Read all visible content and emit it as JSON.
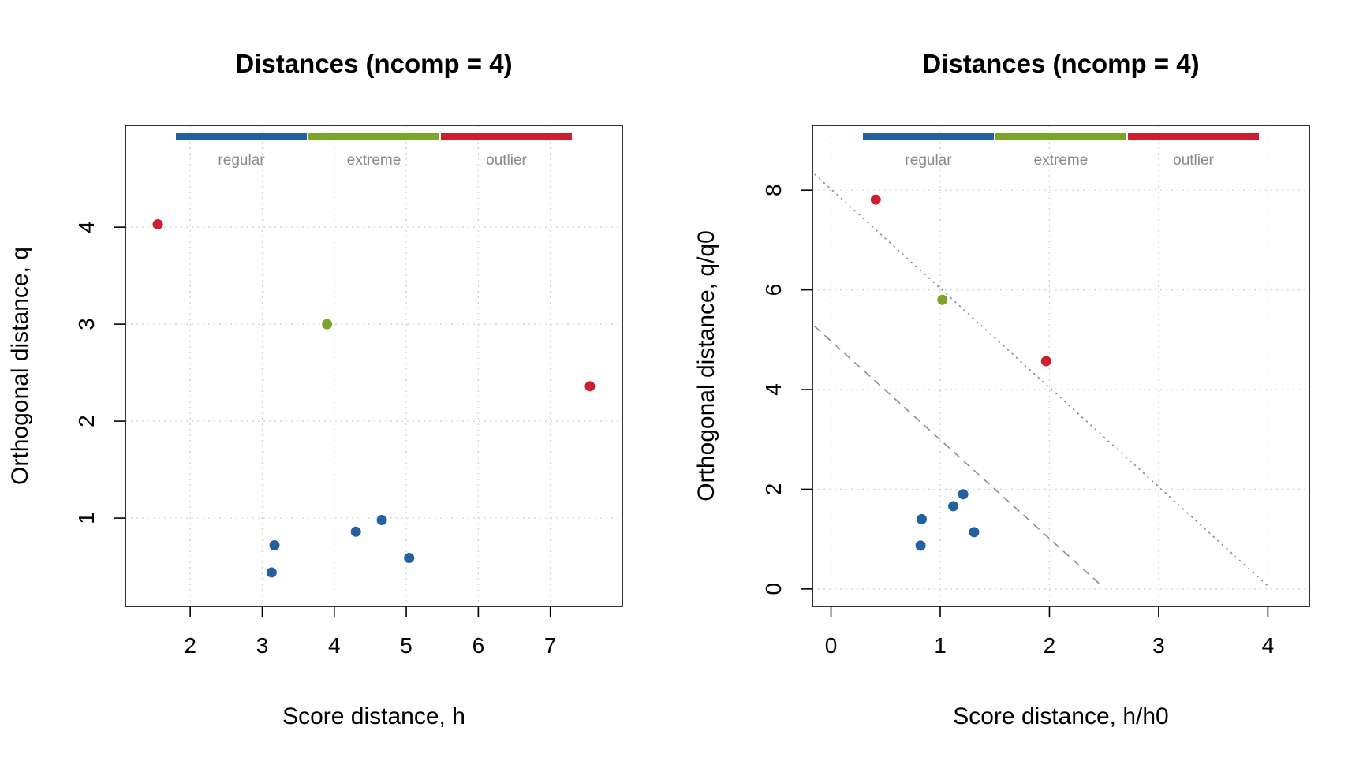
{
  "colors": {
    "regular": "#23609f",
    "extreme": "#7ba428",
    "outlier": "#cc1f2f"
  },
  "chart_data": [
    {
      "type": "scatter",
      "title": "Distances (ncomp = 4)",
      "xlabel": "Score distance, h",
      "ylabel": "Orthogonal distance, q",
      "xlim": [
        1.1,
        8.0
      ],
      "ylim": [
        0.09,
        5.05
      ],
      "xticks": [
        2,
        3,
        4,
        5,
        6,
        7
      ],
      "yticks": [
        1,
        2,
        3,
        4
      ],
      "legend": {
        "position": "top",
        "entries": [
          "regular",
          "extreme",
          "outlier"
        ]
      },
      "points": [
        {
          "x": 1.55,
          "y": 4.03,
          "class": "outlier"
        },
        {
          "x": 3.9,
          "y": 3.0,
          "class": "extreme"
        },
        {
          "x": 7.55,
          "y": 2.36,
          "class": "outlier"
        },
        {
          "x": 3.17,
          "y": 0.72,
          "class": "regular"
        },
        {
          "x": 3.13,
          "y": 0.44,
          "class": "regular"
        },
        {
          "x": 4.3,
          "y": 0.86,
          "class": "regular"
        },
        {
          "x": 4.66,
          "y": 0.98,
          "class": "regular"
        },
        {
          "x": 5.04,
          "y": 0.59,
          "class": "regular"
        }
      ],
      "lines": []
    },
    {
      "type": "scatter",
      "title": "Distances (ncomp = 4)",
      "xlabel": "Score distance, h/h0",
      "ylabel": "Orthogonal distance, q/q0",
      "xlim": [
        -0.17,
        4.38
      ],
      "ylim": [
        -0.35,
        9.3
      ],
      "xticks": [
        0,
        1,
        2,
        3,
        4
      ],
      "yticks": [
        0,
        2,
        4,
        6,
        8
      ],
      "legend": {
        "position": "top",
        "entries": [
          "regular",
          "extreme",
          "outlier"
        ]
      },
      "points": [
        {
          "x": 0.41,
          "y": 7.81,
          "class": "outlier"
        },
        {
          "x": 1.02,
          "y": 5.8,
          "class": "extreme"
        },
        {
          "x": 1.97,
          "y": 4.57,
          "class": "outlier"
        },
        {
          "x": 0.83,
          "y": 1.4,
          "class": "regular"
        },
        {
          "x": 0.82,
          "y": 0.87,
          "class": "regular"
        },
        {
          "x": 1.12,
          "y": 1.66,
          "class": "regular"
        },
        {
          "x": 1.21,
          "y": 1.9,
          "class": "regular"
        },
        {
          "x": 1.31,
          "y": 1.14,
          "class": "regular"
        }
      ],
      "lines": [
        {
          "name": "critical-limit-extreme",
          "style": "dashed",
          "x": [
            -0.15,
            2.46
          ],
          "y": [
            5.27,
            0.1
          ]
        },
        {
          "name": "critical-limit-outlier",
          "style": "dotted",
          "x": [
            -0.15,
            4.02
          ],
          "y": [
            8.32,
            0.02
          ]
        }
      ]
    }
  ]
}
